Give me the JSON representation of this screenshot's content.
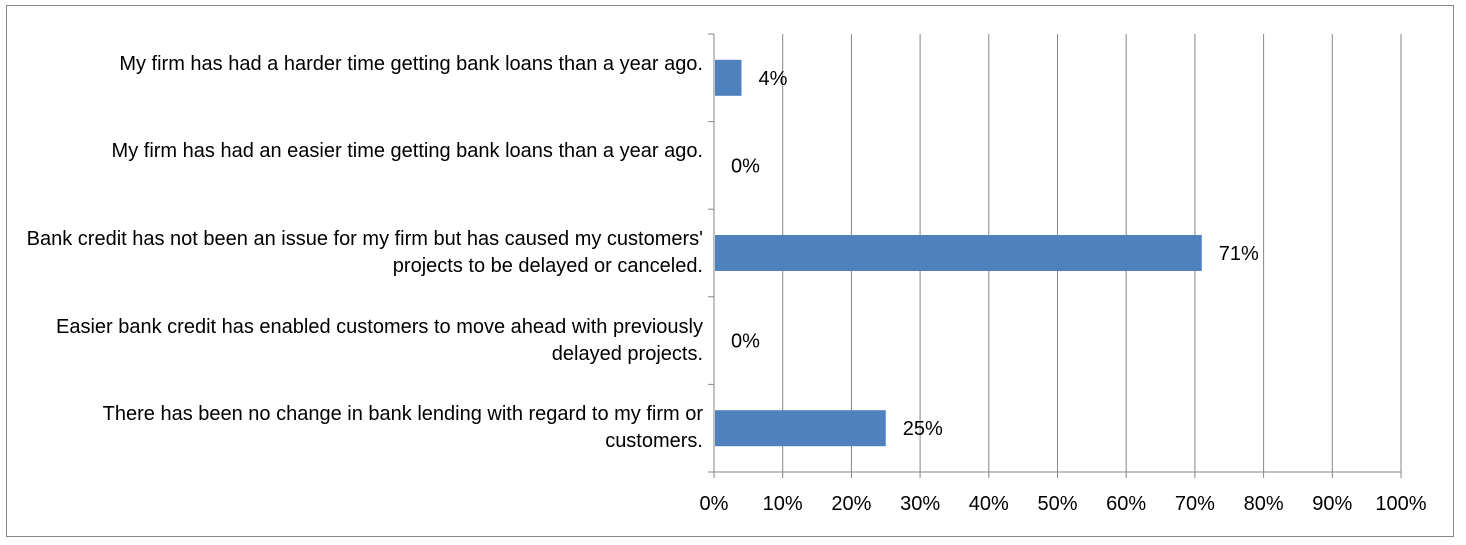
{
  "chart_data": {
    "type": "bar",
    "orientation": "horizontal",
    "categories": [
      "My firm has had a harder time getting bank loans than a year ago.",
      "My firm has had an easier time getting bank loans than a year ago.",
      "Bank credit has not been an issue for my firm but has caused my customers' projects to be delayed or canceled.",
      "Easier bank credit has enabled customers to move ahead with previously delayed projects.",
      "There has been no change in bank lending with regard to my firm or customers."
    ],
    "values": [
      4,
      0,
      71,
      0,
      25
    ],
    "data_labels": [
      "4%",
      "0%",
      "71%",
      "0%",
      "25%"
    ],
    "xlim": [
      0,
      100
    ],
    "x_ticks": [
      "0%",
      "10%",
      "20%",
      "30%",
      "40%",
      "50%",
      "60%",
      "70%",
      "80%",
      "90%",
      "100%"
    ],
    "grid": "vertical",
    "legend": "none",
    "bar_color": "#4f81bd",
    "title": "",
    "xlabel": "",
    "ylabel": ""
  }
}
